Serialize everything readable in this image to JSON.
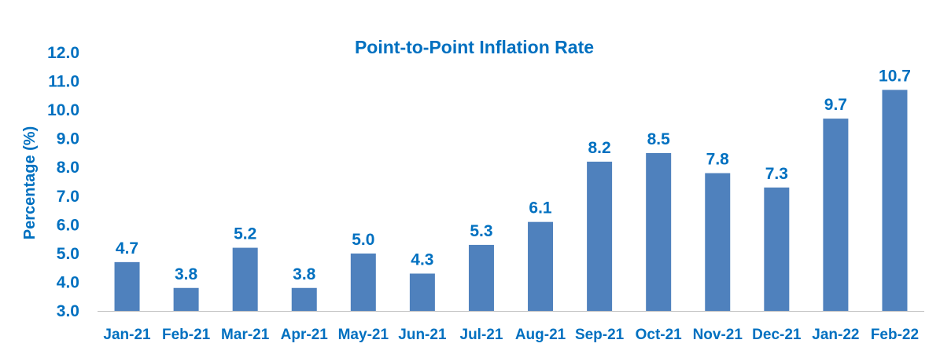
{
  "chart_data": {
    "type": "bar",
    "title": "Point-to-Point Inflation Rate",
    "xlabel": "",
    "ylabel": "Percentage (%)",
    "ylim": [
      3.0,
      12.0
    ],
    "yticks": [
      "3.0",
      "4.0",
      "5.0",
      "6.0",
      "7.0",
      "8.0",
      "9.0",
      "10.0",
      "11.0",
      "12.0"
    ],
    "categories": [
      "Jan-21",
      "Feb-21",
      "Mar-21",
      "Apr-21",
      "May-21",
      "Jun-21",
      "Jul-21",
      "Aug-21",
      "Sep-21",
      "Oct-21",
      "Nov-21",
      "Dec-21",
      "Jan-22",
      "Feb-22"
    ],
    "values": [
      4.7,
      3.8,
      5.2,
      3.8,
      5.0,
      4.3,
      5.3,
      6.1,
      8.2,
      8.5,
      7.8,
      7.3,
      9.7,
      10.7
    ],
    "data_labels": [
      "4.7",
      "3.8",
      "5.2",
      "3.8",
      "5.0",
      "4.3",
      "5.3",
      "6.1",
      "8.2",
      "8.5",
      "7.8",
      "7.3",
      "9.7",
      "10.7"
    ],
    "grid": false,
    "legend": "none",
    "colors": {
      "bar": "#4F81BD",
      "text": "#0070C0",
      "axis": "#BFBFBF"
    }
  }
}
